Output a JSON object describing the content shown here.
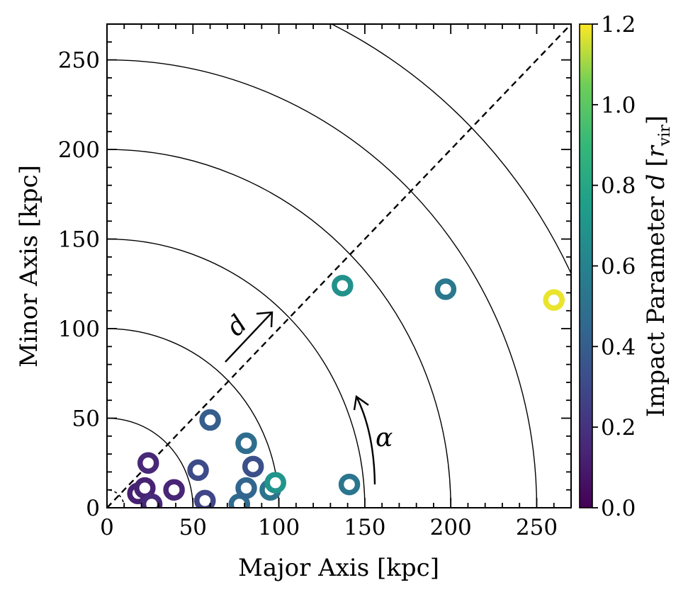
{
  "chart_data": {
    "type": "scatter",
    "xlabel": "Major Axis [kpc]",
    "ylabel": "Minor Axis [kpc]",
    "xlim": [
      0,
      270
    ],
    "ylim": [
      0,
      270
    ],
    "x_ticks": [
      "0",
      "50",
      "100",
      "150",
      "200",
      "250"
    ],
    "y_ticks": [
      "0",
      "50",
      "100",
      "150",
      "200",
      "250"
    ],
    "x_tick_values": [
      0,
      50,
      100,
      150,
      200,
      250
    ],
    "y_tick_values": [
      0,
      50,
      100,
      150,
      200,
      250
    ],
    "arc_radii_kpc": [
      10,
      50,
      100,
      150,
      200,
      250,
      300
    ],
    "diagonal": "y = x (dashed)",
    "annotations": {
      "d_label": "d",
      "alpha_label": "α"
    },
    "colorbar": {
      "label_main": "Impact Parameter",
      "label_symbol": "d",
      "label_bracket_open": "[",
      "label_r": "r",
      "label_sub": "vir",
      "label_bracket_close": "]",
      "range": [
        0.0,
        1.2
      ],
      "tick_labels": [
        "0.0",
        "0.2",
        "0.4",
        "0.6",
        "0.8",
        "1.0",
        "1.2"
      ],
      "tick_values": [
        0.0,
        0.2,
        0.4,
        0.6,
        0.8,
        1.0,
        1.2
      ],
      "colormap": "viridis"
    },
    "points": [
      {
        "x": 18,
        "y": 8,
        "c": 0.12
      },
      {
        "x": 22,
        "y": 11,
        "c": 0.13
      },
      {
        "x": 26,
        "y": 2,
        "c": 0.16
      },
      {
        "x": 24,
        "y": 25,
        "c": 0.15
      },
      {
        "x": 39,
        "y": 10,
        "c": 0.14
      },
      {
        "x": 53,
        "y": 21,
        "c": 0.31
      },
      {
        "x": 57,
        "y": 4,
        "c": 0.28
      },
      {
        "x": 60,
        "y": 49,
        "c": 0.4
      },
      {
        "x": 77,
        "y": 2,
        "c": 0.47
      },
      {
        "x": 81,
        "y": 11,
        "c": 0.44
      },
      {
        "x": 81,
        "y": 36,
        "c": 0.48
      },
      {
        "x": 85,
        "y": 23,
        "c": 0.33
      },
      {
        "x": 95,
        "y": 10,
        "c": 0.52
      },
      {
        "x": 98,
        "y": 14,
        "c": 0.7
      },
      {
        "x": 137,
        "y": 124,
        "c": 0.68
      },
      {
        "x": 141,
        "y": 13,
        "c": 0.53
      },
      {
        "x": 197,
        "y": 122,
        "c": 0.54
      },
      {
        "x": 260,
        "y": 116,
        "c": 1.18
      }
    ]
  }
}
